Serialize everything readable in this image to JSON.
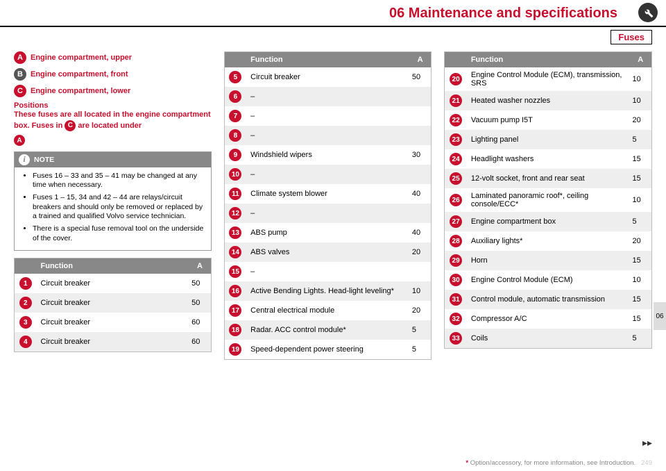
{
  "header": {
    "chapter": "06 Maintenance and specifications",
    "section": "Fuses"
  },
  "legend": {
    "A": "Engine compartment, upper",
    "B": "Engine compartment, front",
    "C": "Engine compartment, lower"
  },
  "positions": {
    "heading": "Positions",
    "text1": "These fuses are all located in the engine compartment box. Fuses in ",
    "text2": " are located under",
    "inlineC": "C",
    "inlineA": "A"
  },
  "note": {
    "title": "NOTE",
    "items": [
      "Fuses 16 – 33 and 35 – 41 may be changed at any time when necessary.",
      "Fuses 1 – 15, 34 and 42 – 44 are relays/circuit breakers and should only be removed or replaced by a trained and qualified Volvo service technician.",
      "There is a special fuse removal tool on the underside of the cover."
    ]
  },
  "table_headers": {
    "func": "Function",
    "amp": "A"
  },
  "t1": [
    {
      "n": "1",
      "f": "Circuit breaker",
      "a": "50"
    },
    {
      "n": "2",
      "f": "Circuit breaker",
      "a": "50"
    },
    {
      "n": "3",
      "f": "Circuit breaker",
      "a": "60"
    },
    {
      "n": "4",
      "f": "Circuit breaker",
      "a": "60"
    }
  ],
  "t2": [
    {
      "n": "5",
      "f": "Circuit breaker",
      "a": "50"
    },
    {
      "n": "6",
      "f": "–",
      "a": ""
    },
    {
      "n": "7",
      "f": "–",
      "a": ""
    },
    {
      "n": "8",
      "f": "–",
      "a": ""
    },
    {
      "n": "9",
      "f": "Windshield wipers",
      "a": "30"
    },
    {
      "n": "10",
      "f": "–",
      "a": ""
    },
    {
      "n": "11",
      "f": "Climate system blower",
      "a": "40"
    },
    {
      "n": "12",
      "f": "–",
      "a": ""
    },
    {
      "n": "13",
      "f": "ABS pump",
      "a": "40"
    },
    {
      "n": "14",
      "f": "ABS valves",
      "a": "20"
    },
    {
      "n": "15",
      "f": "–",
      "a": ""
    },
    {
      "n": "16",
      "f": "Active Bending Lights. Head-light leveling*",
      "a": "10"
    },
    {
      "n": "17",
      "f": "Central electrical module",
      "a": "20"
    },
    {
      "n": "18",
      "f": "Radar. ACC control module*",
      "a": "5"
    },
    {
      "n": "19",
      "f": "Speed-dependent power steering",
      "a": "5"
    }
  ],
  "t3": [
    {
      "n": "20",
      "f": "Engine Control Module (ECM), transmission, SRS",
      "a": "10"
    },
    {
      "n": "21",
      "f": "Heated washer nozzles",
      "a": "10"
    },
    {
      "n": "22",
      "f": "Vacuum pump I5T",
      "a": "20"
    },
    {
      "n": "23",
      "f": "Lighting panel",
      "a": "5"
    },
    {
      "n": "24",
      "f": "Headlight washers",
      "a": "15"
    },
    {
      "n": "25",
      "f": "12-volt socket, front and rear seat",
      "a": "15"
    },
    {
      "n": "26",
      "f": "Laminated panoramic roof*, ceiling console/ECC*",
      "a": "10"
    },
    {
      "n": "27",
      "f": "Engine compartment box",
      "a": "5"
    },
    {
      "n": "28",
      "f": "Auxiliary lights*",
      "a": "20"
    },
    {
      "n": "29",
      "f": "Horn",
      "a": "15"
    },
    {
      "n": "30",
      "f": "Engine Control Module (ECM)",
      "a": "10"
    },
    {
      "n": "31",
      "f": "Control module, automatic transmission",
      "a": "15"
    },
    {
      "n": "32",
      "f": "Compressor A/C",
      "a": "15"
    },
    {
      "n": "33",
      "f": "Coils",
      "a": "5"
    }
  ],
  "sidetab": "06",
  "footer": {
    "star": "*",
    "text": " Option/accessory, for more information, see Introduction."
  },
  "pagenum": "249"
}
